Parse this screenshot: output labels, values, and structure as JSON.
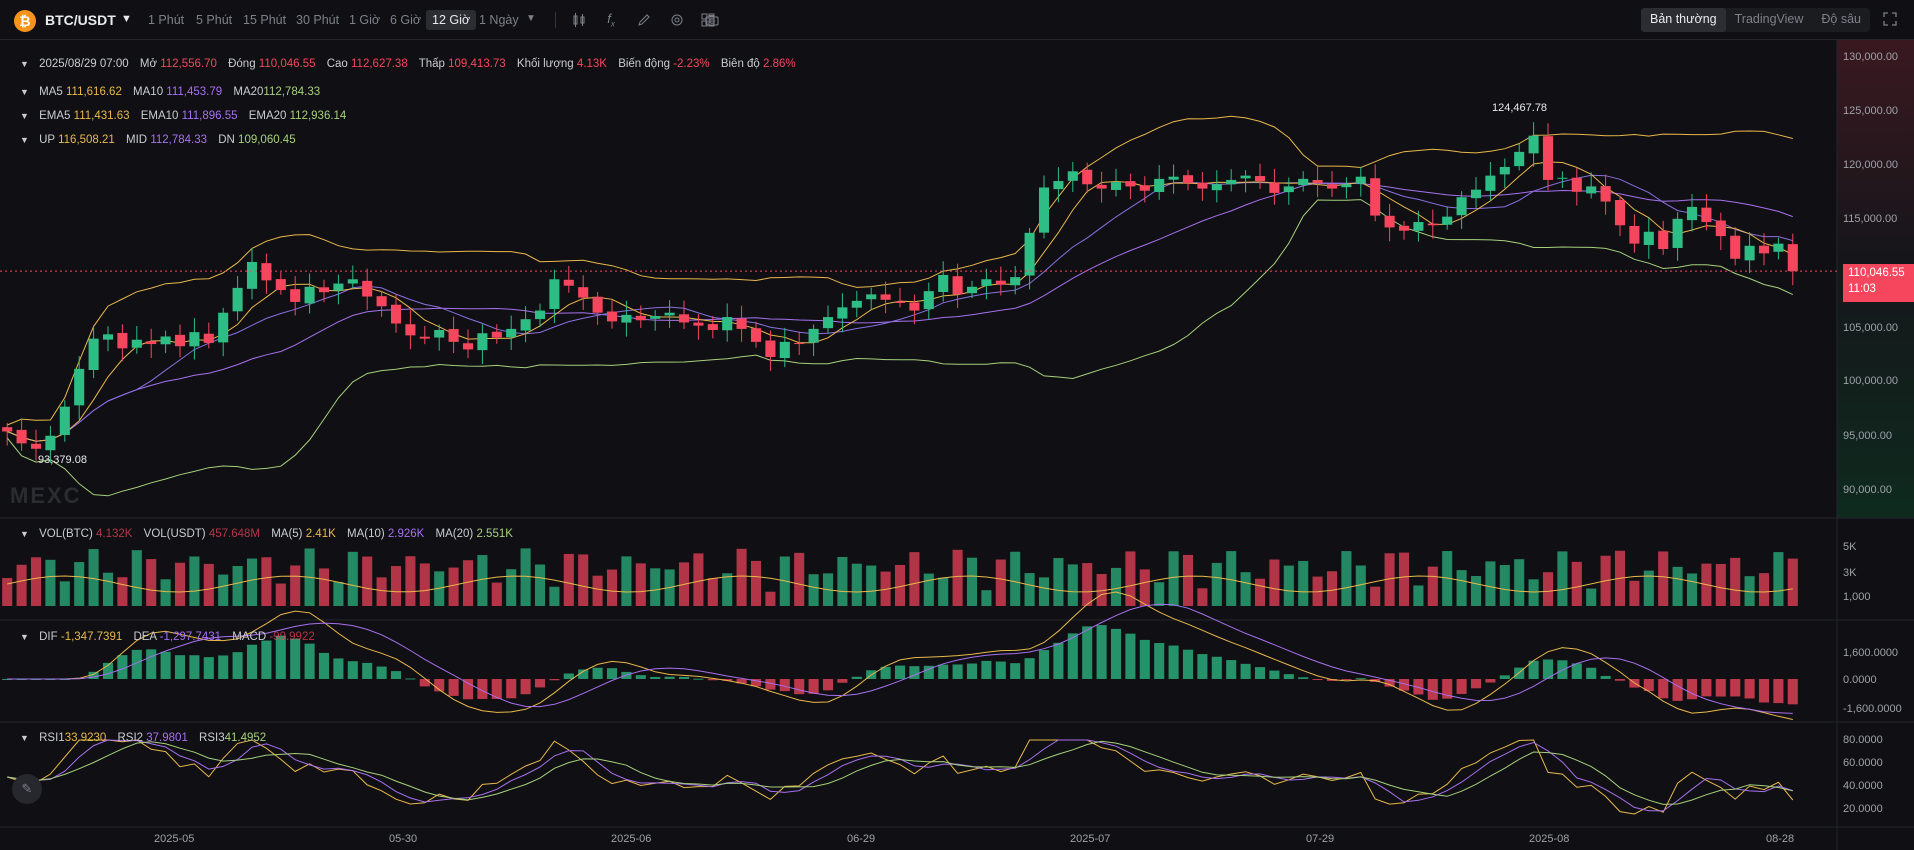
{
  "header": {
    "pair": "BTC/USDT",
    "timeframes": [
      "1 Phút",
      "5 Phút",
      "15 Phút",
      "30 Phút",
      "1 Giờ",
      "6 Giờ",
      "12 Giờ",
      "1 Ngày"
    ],
    "active_timeframe": "12 Giờ",
    "view_tabs": [
      "Bản thường",
      "TradingView",
      "Độ sâu"
    ],
    "active_view": "Bản thường"
  },
  "ohlc": {
    "date": "2025/08/29 07:00",
    "open_label": "Mở",
    "open": "112,556.70",
    "close_label": "Đóng",
    "close": "110,046.55",
    "high_label": "Cao",
    "high": "112,627.38",
    "low_label": "Thấp",
    "low": "109,413.73",
    "volume_label": "Khối lượng",
    "volume": "4.13K",
    "change_label": "Biến động",
    "change": "-2.23%",
    "amplitude_label": "Biên độ",
    "amplitude": "2.86%"
  },
  "ma": {
    "ma5_label": "MA5",
    "ma5": "111,616.62",
    "ma10_label": "MA10",
    "ma10": "111,453.79",
    "ma20_label": "MA20",
    "ma20": "112,784.33"
  },
  "ema": {
    "ema5_label": "EMA5",
    "ema5": "111,431.63",
    "ema10_label": "EMA10",
    "ema10": "111,896.55",
    "ema20_label": "EMA20",
    "ema20": "112,936.14"
  },
  "boll": {
    "up_label": "UP",
    "up": "116,508.21",
    "mid_label": "MID",
    "mid": "112,784.33",
    "dn_label": "DN",
    "dn": "109,060.45"
  },
  "price_axis": [
    "130,000.00",
    "125,000.00",
    "120,000.00",
    "115,000.00",
    "105,000.00",
    "100,000.00",
    "95,000.00",
    "90,000.00"
  ],
  "last_price": {
    "price": "110,046.55",
    "countdown": "11:03"
  },
  "high_marker": "124,467.78",
  "low_marker": "93,379.08",
  "watermark": "MEXC",
  "volume": {
    "vol_btc_label": "VOL(BTC)",
    "vol_btc": "4.132K",
    "vol_usdt_label": "VOL(USDT)",
    "vol_usdt": "457.648M",
    "ma5_label": "MA(5)",
    "ma5": "2.41K",
    "ma10_label": "MA(10)",
    "ma10": "2.926K",
    "ma20_label": "MA(20)",
    "ma20": "2.551K",
    "axis": [
      "5K",
      "3K",
      "1,000"
    ]
  },
  "macd": {
    "dif_label": "DIF",
    "dif": "-1,347.7391",
    "dea_label": "DEA",
    "dea": "-1,297.7431",
    "macd_label": "MACD",
    "macd": "-99.9922",
    "axis": [
      "1,600.0000",
      "0.0000",
      "-1,600.0000"
    ]
  },
  "rsi": {
    "rsi1_label": "RSI1",
    "rsi1": "33.9230",
    "rsi2_label": "RSI2",
    "rsi2": "37.9801",
    "rsi3_label": "RSI3",
    "rsi3": "41.4952",
    "axis": [
      "80.0000",
      "60.0000",
      "40.0000",
      "20.0000"
    ]
  },
  "x_axis": [
    "2025-05",
    "05-30",
    "2025-06",
    "06-29",
    "2025-07",
    "07-29",
    "2025-08",
    "08-28"
  ],
  "colors": {
    "up": "#2ebd85",
    "down": "#f6465d",
    "ma5": "#e9b84a",
    "ma10": "#a770ef",
    "ma20": "#a6d07b",
    "background": "#101014"
  },
  "chart_data": {
    "type": "candlestick",
    "pair": "BTC/USDT",
    "interval": "12 Giờ",
    "price_range": [
      87000,
      131000
    ],
    "approx_closes": [
      95200,
      94100,
      93600,
      94800,
      97500,
      101000,
      103800,
      104200,
      102900,
      103700,
      103300,
      104000,
      103100,
      104400,
      103400,
      106200,
      108500,
      110900,
      109200,
      108300,
      107200,
      108600,
      108100,
      108900,
      109300,
      107700,
      106800,
      105200,
      104100,
      103800,
      104600,
      103500,
      102800,
      104300,
      103900,
      104700,
      105600,
      106400,
      109300,
      108700,
      107600,
      106200,
      105400,
      106000,
      105500,
      105900,
      106200,
      105300,
      105000,
      104600,
      105800,
      104700,
      103500,
      102100,
      103500,
      103300,
      104700,
      105800,
      106700,
      107300,
      107900,
      107400,
      107100,
      106400,
      108200,
      109700,
      107900,
      108600,
      109300,
      108800,
      109500,
      113600,
      117800,
      118400,
      119300,
      118100,
      117700,
      118300,
      117900,
      117500,
      118600,
      118800,
      118200,
      117700,
      118100,
      118500,
      118900,
      118400,
      117300,
      117900,
      118600,
      118200,
      117700,
      118100,
      118800,
      115200,
      114100,
      113800,
      114600,
      114300,
      115100,
      116900,
      117600,
      118900,
      119700,
      121100,
      122600,
      118500,
      118700,
      117400,
      117900,
      116500,
      114300,
      112600,
      113700,
      112100,
      114900,
      116000,
      114600,
      113300,
      111200,
      112400,
      111700,
      112600,
      110050
    ],
    "volume_axis": [
      "5K",
      "3K",
      "1,000"
    ],
    "macd_axis": [
      1600,
      0,
      -1600
    ],
    "rsi_axis": [
      80,
      60,
      40,
      20
    ]
  }
}
